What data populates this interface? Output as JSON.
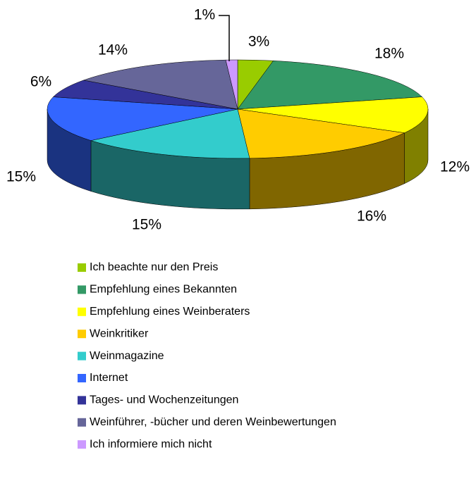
{
  "chart_data": {
    "type": "pie",
    "categories": [
      "Ich beachte nur den Preis",
      "Empfehlung eines Bekannten",
      "Empfehlung eines Weinberaters",
      "Weinkritiker",
      "Weinmagazine",
      "Internet",
      "Tages- und Wochenzeitungen",
      "Weinführer, -bücher und deren Weinbewertungen",
      "Ich informiere mich nicht"
    ],
    "values": [
      3,
      18,
      12,
      16,
      15,
      15,
      6,
      14,
      1
    ],
    "value_labels": [
      "3%",
      "18%",
      "12%",
      "16%",
      "15%",
      "15%",
      "6%",
      "14%",
      "1%"
    ],
    "colors": [
      "#99cc00",
      "#339966",
      "#ffff00",
      "#ffcc00",
      "#33cccc",
      "#3366ff",
      "#333399",
      "#666699",
      "#cc99ff"
    ]
  }
}
